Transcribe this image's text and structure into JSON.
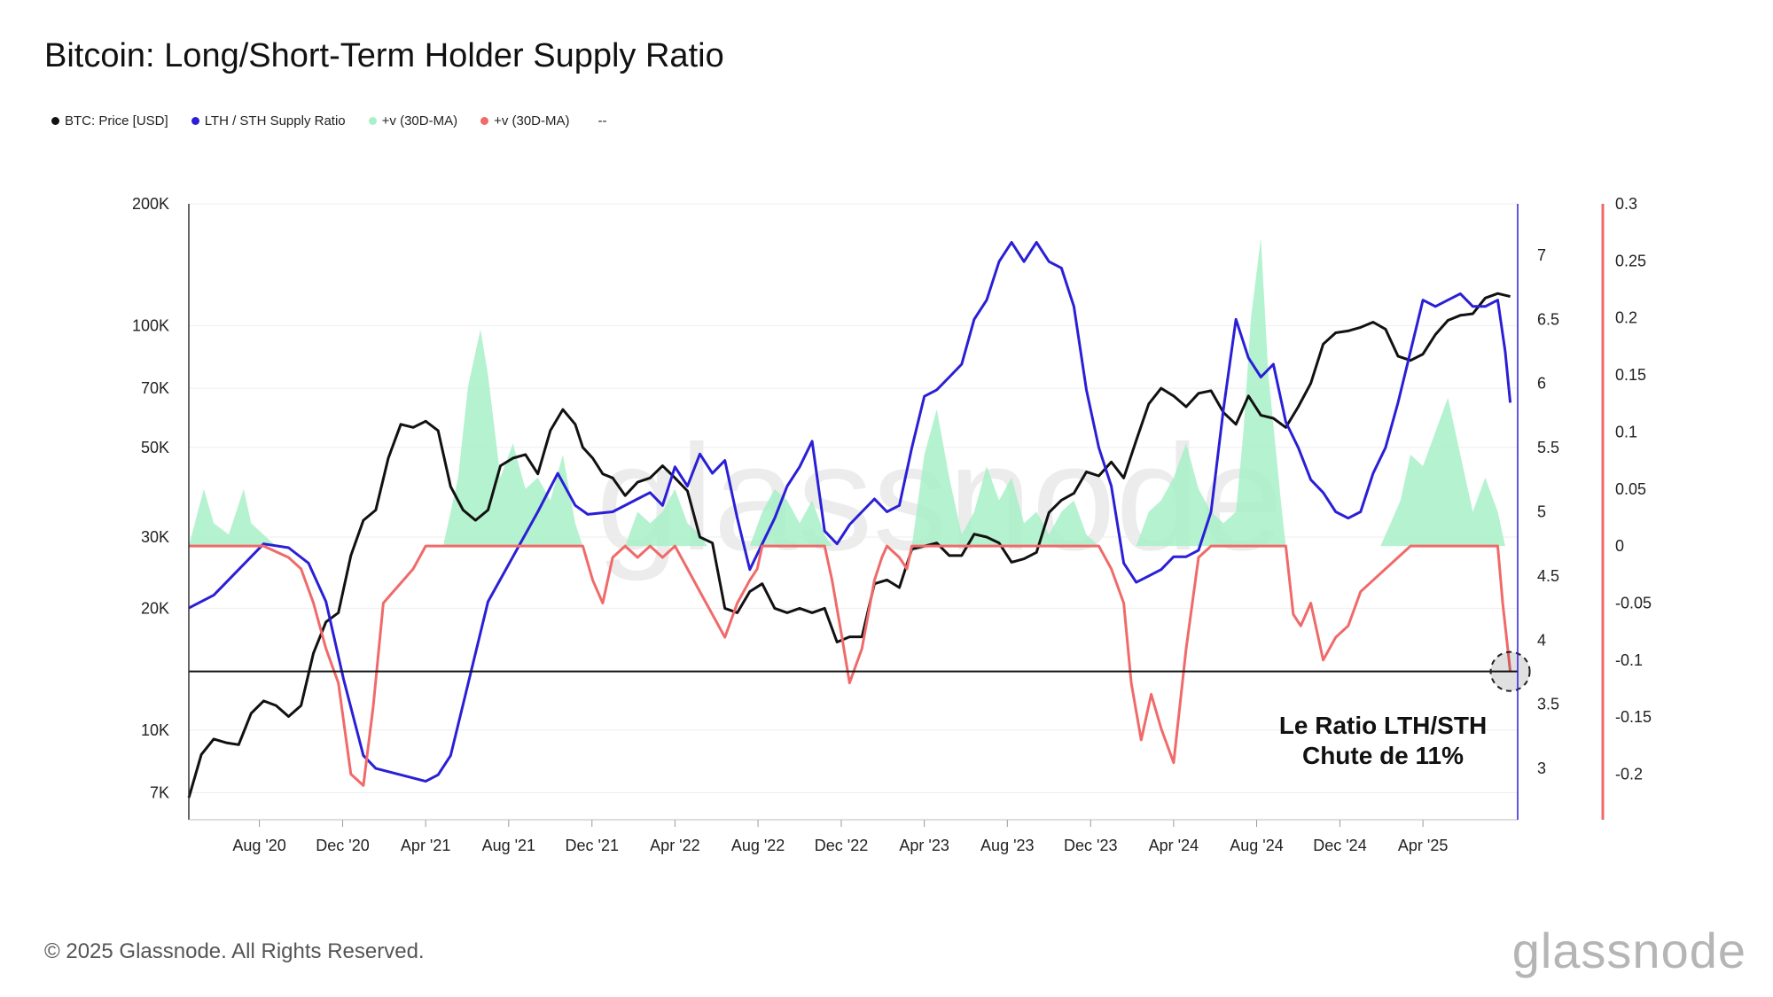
{
  "title": "Bitcoin: Long/Short-Term Holder Supply Ratio",
  "legend": [
    {
      "label": "BTC: Price [USD]",
      "color": "#111111"
    },
    {
      "label": "LTH / STH Supply Ratio",
      "color": "#2a1fd6"
    },
    {
      "label": "+v (30D-MA)",
      "color": "#a8f0c8"
    },
    {
      "label": "+v (30D-MA)",
      "color": "#f06a6a"
    }
  ],
  "legend_extra": "--",
  "footer": "© 2025 Glassnode. All Rights Reserved.",
  "brand": "glassnode",
  "watermark": "glassnode",
  "annotation_lines": [
    "Le Ratio LTH/STH",
    "Chute de 11%"
  ],
  "chart_data": {
    "type": "line",
    "title": "Bitcoin: Long/Short-Term Holder Supply Ratio",
    "x_ticks": [
      "Aug '20",
      "Dec '20",
      "Apr '21",
      "Aug '21",
      "Dec '21",
      "Apr '22",
      "Aug '22",
      "Dec '22",
      "Apr '23",
      "Aug '23",
      "Dec '23",
      "Apr '24",
      "Aug '24",
      "Dec '24",
      "Apr '25"
    ],
    "x_range": [
      2020.3,
      2025.63
    ],
    "x_tick_values": [
      2020.583,
      2020.917,
      2021.25,
      2021.583,
      2021.917,
      2022.25,
      2022.583,
      2022.917,
      2023.25,
      2023.583,
      2023.917,
      2024.25,
      2024.583,
      2024.917,
      2025.25
    ],
    "y_left": {
      "label": "BTC: Price [USD]",
      "scale": "log",
      "ticks": [
        7000,
        10000,
        20000,
        30000,
        50000,
        70000,
        100000,
        200000
      ],
      "tick_labels": [
        "7K",
        "10K",
        "20K",
        "30K",
        "50K",
        "70K",
        "100K",
        "200K"
      ],
      "range": [
        6000,
        200000
      ]
    },
    "y_mid": {
      "label": "LTH / STH Supply Ratio",
      "ticks": [
        3,
        3.5,
        4,
        4.5,
        5,
        5.5,
        6,
        6.5,
        7
      ],
      "tick_labels": [
        "3",
        "3.5",
        "4",
        "4.5",
        "5",
        "5.5",
        "6",
        "6.5",
        "7"
      ],
      "range": [
        2.6,
        7.4
      ]
    },
    "y_right": {
      "label": "+v (30D-MA)",
      "ticks": [
        0.3,
        0.25,
        0.2,
        0.15,
        0.1,
        0.05,
        0,
        -0.05,
        -0.1,
        -0.15,
        -0.2
      ],
      "tick_labels": [
        "0.3",
        "0.25",
        "0.2",
        "0.15",
        "0.1",
        "0.05",
        "0",
        "-0.05",
        "-0.1",
        "-0.15",
        "-0.2"
      ],
      "range": [
        -0.24,
        0.3
      ]
    },
    "reference_level": -0.11,
    "series": [
      {
        "name": "BTC: Price [USD]",
        "axis": "left",
        "color": "#111111",
        "x": [
          2020.3,
          2020.35,
          2020.4,
          2020.45,
          2020.5,
          2020.55,
          2020.6,
          2020.65,
          2020.7,
          2020.75,
          2020.8,
          2020.85,
          2020.9,
          2020.95,
          2021.0,
          2021.05,
          2021.1,
          2021.15,
          2021.2,
          2021.25,
          2021.3,
          2021.35,
          2021.4,
          2021.45,
          2021.5,
          2021.55,
          2021.6,
          2021.65,
          2021.7,
          2021.75,
          2021.8,
          2021.85,
          2021.88,
          2021.92,
          2021.96,
          2022.0,
          2022.05,
          2022.1,
          2022.15,
          2022.2,
          2022.25,
          2022.3,
          2022.35,
          2022.4,
          2022.45,
          2022.5,
          2022.55,
          2022.6,
          2022.65,
          2022.7,
          2022.75,
          2022.8,
          2022.85,
          2022.9,
          2022.95,
          2023.0,
          2023.05,
          2023.1,
          2023.15,
          2023.2,
          2023.25,
          2023.3,
          2023.35,
          2023.4,
          2023.45,
          2023.5,
          2023.55,
          2023.6,
          2023.65,
          2023.7,
          2023.75,
          2023.8,
          2023.85,
          2023.9,
          2023.95,
          2024.0,
          2024.05,
          2024.1,
          2024.15,
          2024.2,
          2024.25,
          2024.3,
          2024.35,
          2024.4,
          2024.45,
          2024.5,
          2024.55,
          2024.6,
          2024.65,
          2024.7,
          2024.75,
          2024.8,
          2024.85,
          2024.9,
          2024.95,
          2025.0,
          2025.05,
          2025.1,
          2025.15,
          2025.2,
          2025.25,
          2025.3,
          2025.35,
          2025.4,
          2025.45,
          2025.5,
          2025.55,
          2025.6
        ],
        "values": [
          6800,
          8700,
          9500,
          9300,
          9200,
          11000,
          11800,
          11500,
          10800,
          11500,
          15500,
          18500,
          19500,
          27000,
          33000,
          35000,
          47000,
          57000,
          56000,
          58000,
          55000,
          40000,
          35000,
          33000,
          35000,
          45000,
          47000,
          48000,
          43000,
          55000,
          62000,
          57000,
          50000,
          47000,
          43000,
          42000,
          38000,
          41000,
          42000,
          45000,
          42000,
          39000,
          30000,
          29000,
          20000,
          19500,
          22000,
          23000,
          20000,
          19500,
          20000,
          19500,
          20000,
          16500,
          17000,
          17000,
          23000,
          23500,
          22500,
          28000,
          28500,
          29000,
          27000,
          27000,
          30500,
          30000,
          29000,
          26000,
          26500,
          27500,
          34500,
          37000,
          38500,
          43500,
          42500,
          46000,
          42000,
          52000,
          64000,
          70000,
          67000,
          63000,
          68000,
          69000,
          61000,
          57000,
          67000,
          60000,
          59000,
          56000,
          63000,
          72000,
          90000,
          96000,
          97000,
          99000,
          102000,
          98000,
          84000,
          82000,
          85000,
          95000,
          103000,
          106000,
          107000,
          117000,
          120000,
          118000
        ]
      },
      {
        "name": "LTH / STH Supply Ratio",
        "axis": "mid",
        "color": "#2a1fd6",
        "x": [
          2020.3,
          2020.4,
          2020.5,
          2020.6,
          2020.7,
          2020.78,
          2020.85,
          2020.92,
          2021.0,
          2021.05,
          2021.15,
          2021.25,
          2021.3,
          2021.35,
          2021.4,
          2021.5,
          2021.6,
          2021.7,
          2021.78,
          2021.85,
          2021.9,
          2022.0,
          2022.1,
          2022.15,
          2022.2,
          2022.25,
          2022.3,
          2022.35,
          2022.4,
          2022.45,
          2022.5,
          2022.55,
          2022.6,
          2022.65,
          2022.7,
          2022.75,
          2022.8,
          2022.85,
          2022.9,
          2022.95,
          2023.0,
          2023.05,
          2023.1,
          2023.15,
          2023.2,
          2023.25,
          2023.3,
          2023.35,
          2023.4,
          2023.45,
          2023.5,
          2023.55,
          2023.6,
          2023.65,
          2023.7,
          2023.75,
          2023.8,
          2023.85,
          2023.9,
          2023.95,
          2024.0,
          2024.05,
          2024.1,
          2024.15,
          2024.2,
          2024.25,
          2024.3,
          2024.35,
          2024.4,
          2024.45,
          2024.5,
          2024.55,
          2024.6,
          2024.65,
          2024.7,
          2024.75,
          2024.8,
          2024.85,
          2024.9,
          2024.95,
          2025.0,
          2025.05,
          2025.1,
          2025.15,
          2025.2,
          2025.25,
          2025.3,
          2025.35,
          2025.4,
          2025.45,
          2025.5,
          2025.55,
          2025.58,
          2025.6
        ],
        "values": [
          4.25,
          4.35,
          4.55,
          4.75,
          4.72,
          4.6,
          4.3,
          3.7,
          3.1,
          3.0,
          2.95,
          2.9,
          2.95,
          3.1,
          3.5,
          4.3,
          4.65,
          5.0,
          5.3,
          5.05,
          4.98,
          5.0,
          5.1,
          5.15,
          5.05,
          5.35,
          5.2,
          5.45,
          5.3,
          5.4,
          4.95,
          4.55,
          4.75,
          4.95,
          5.2,
          5.35,
          5.55,
          4.85,
          4.75,
          4.9,
          5.0,
          5.1,
          5.0,
          5.05,
          5.5,
          5.9,
          5.95,
          6.05,
          6.15,
          6.5,
          6.65,
          6.95,
          7.1,
          6.95,
          7.1,
          6.95,
          6.9,
          6.6,
          5.95,
          5.5,
          5.2,
          4.6,
          4.45,
          4.5,
          4.55,
          4.65,
          4.65,
          4.7,
          5.0,
          5.8,
          6.5,
          6.2,
          6.05,
          6.15,
          5.7,
          5.5,
          5.25,
          5.15,
          5.0,
          4.95,
          5.0,
          5.3,
          5.5,
          5.85,
          6.25,
          6.65,
          6.6,
          6.65,
          6.7,
          6.6,
          6.6,
          6.65,
          6.25,
          5.85
        ]
      },
      {
        "name": "+v (30D-MA)",
        "axis": "right",
        "color": "#a8f0c8",
        "type": "area",
        "x": [
          2020.3,
          2020.36,
          2020.4,
          2020.46,
          2020.52,
          2020.55,
          2020.6,
          2020.65,
          2020.7,
          2020.75,
          2021.32,
          2021.38,
          2021.42,
          2021.47,
          2021.5,
          2021.55,
          2021.6,
          2021.65,
          2021.7,
          2021.75,
          2021.8,
          2021.85,
          2021.88,
          2022.05,
          2022.1,
          2022.15,
          2022.2,
          2022.25,
          2022.3,
          2022.35,
          2022.38,
          2022.55,
          2022.6,
          2022.65,
          2022.7,
          2022.75,
          2022.8,
          2022.85,
          2022.88,
          2023.2,
          2023.25,
          2023.3,
          2023.35,
          2023.4,
          2023.45,
          2023.5,
          2023.55,
          2023.6,
          2023.65,
          2023.7,
          2023.75,
          2023.8,
          2023.85,
          2023.9,
          2023.95,
          2024.1,
          2024.15,
          2024.2,
          2024.25,
          2024.3,
          2024.35,
          2024.4,
          2024.45,
          2024.5,
          2024.53,
          2024.56,
          2024.6,
          2024.63,
          2024.68,
          2024.7,
          2025.08,
          2025.12,
          2025.16,
          2025.2,
          2025.25,
          2025.3,
          2025.35,
          2025.4,
          2025.45,
          2025.5,
          2025.55,
          2025.58
        ],
        "values": [
          0,
          0.05,
          0.02,
          0.01,
          0.05,
          0.02,
          0.01,
          0,
          0,
          0,
          0,
          0.06,
          0.14,
          0.19,
          0.15,
          0.06,
          0.09,
          0.05,
          0.06,
          0.04,
          0.08,
          0.02,
          0,
          0,
          0.03,
          0.02,
          0.03,
          0.05,
          0.02,
          0.01,
          0,
          0,
          0.03,
          0.05,
          0.04,
          0.02,
          0.04,
          0.01,
          0,
          0,
          0.08,
          0.12,
          0.06,
          0.01,
          0.03,
          0.07,
          0.04,
          0.06,
          0.02,
          0.03,
          0.01,
          0.03,
          0.04,
          0.01,
          0,
          0,
          0.03,
          0.04,
          0.06,
          0.09,
          0.05,
          0.03,
          0.02,
          0.03,
          0.1,
          0.2,
          0.27,
          0.15,
          0.04,
          0,
          0,
          0.02,
          0.04,
          0.08,
          0.07,
          0.1,
          0.13,
          0.08,
          0.03,
          0.06,
          0.03,
          0.0
        ]
      },
      {
        "name": "+v (30D-MA)",
        "axis": "right",
        "color": "#f06a6a",
        "x": [
          2020.3,
          2020.6,
          2020.7,
          2020.75,
          2020.8,
          2020.85,
          2020.9,
          2020.95,
          2021.0,
          2021.04,
          2021.08,
          2021.12,
          2021.16,
          2021.2,
          2021.25,
          2021.3,
          2021.32,
          2021.88,
          2021.92,
          2021.96,
          2022.0,
          2022.05,
          2022.1,
          2022.15,
          2022.2,
          2022.25,
          2022.3,
          2022.35,
          2022.4,
          2022.45,
          2022.5,
          2022.55,
          2022.58,
          2022.6,
          2022.62,
          2022.64,
          2022.85,
          2022.88,
          2022.92,
          2022.95,
          2023.0,
          2023.05,
          2023.08,
          2023.1,
          2023.15,
          2023.18,
          2023.2,
          2023.25,
          2023.95,
          2024.0,
          2024.05,
          2024.08,
          2024.12,
          2024.16,
          2024.2,
          2024.25,
          2024.3,
          2024.35,
          2024.4,
          2024.45,
          2024.48,
          2024.7,
          2024.73,
          2024.76,
          2024.8,
          2024.85,
          2024.9,
          2024.95,
          2025.0,
          2025.05,
          2025.1,
          2025.15,
          2025.2,
          2025.25,
          2025.55,
          2025.57,
          2025.59,
          2025.6
        ],
        "values": [
          0,
          0,
          -0.01,
          -0.02,
          -0.05,
          -0.09,
          -0.12,
          -0.2,
          -0.21,
          -0.14,
          -0.05,
          -0.04,
          -0.03,
          -0.02,
          0,
          0,
          0,
          0,
          -0.03,
          -0.05,
          -0.01,
          0,
          -0.01,
          0,
          -0.01,
          0,
          -0.02,
          -0.04,
          -0.06,
          -0.08,
          -0.05,
          -0.03,
          -0.02,
          0,
          0,
          0,
          0,
          -0.03,
          -0.08,
          -0.12,
          -0.09,
          -0.03,
          -0.01,
          0,
          -0.01,
          -0.02,
          0,
          0,
          0,
          -0.02,
          -0.05,
          -0.12,
          -0.17,
          -0.13,
          -0.16,
          -0.19,
          -0.09,
          -0.01,
          0,
          0,
          0,
          0,
          -0.06,
          -0.07,
          -0.05,
          -0.1,
          -0.08,
          -0.07,
          -0.04,
          -0.03,
          -0.02,
          -0.01,
          0,
          0,
          0,
          -0.05,
          -0.09,
          -0.11
        ]
      }
    ]
  }
}
